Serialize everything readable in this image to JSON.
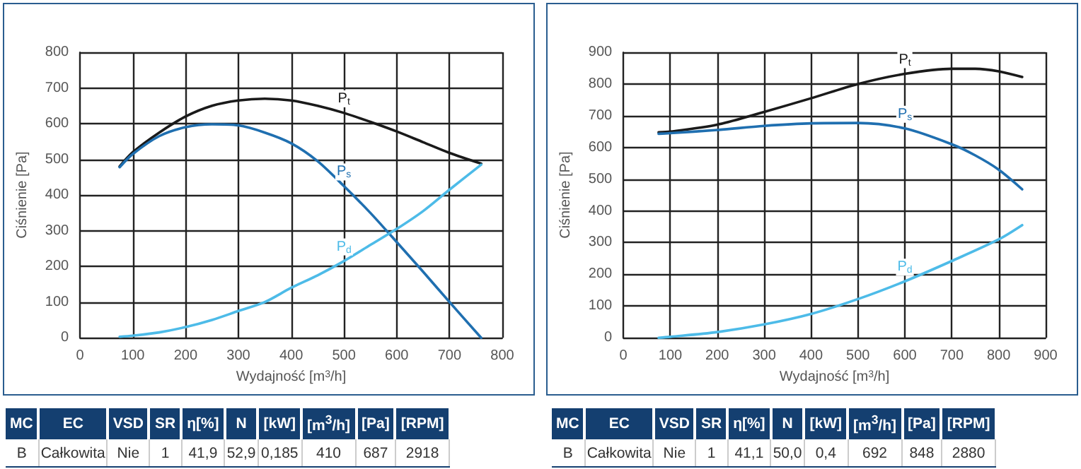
{
  "chart_data": [
    {
      "type": "line",
      "xlabel": "Wydajność [m$^{3}$/h]",
      "ylabel": "Ciśnienie [Pa]",
      "xlim": [
        0,
        800
      ],
      "xticks": [
        0,
        100,
        200,
        300,
        400,
        500,
        600,
        700,
        800
      ],
      "ylim": [
        0,
        800
      ],
      "yticks": [
        0,
        100,
        200,
        300,
        400,
        500,
        600,
        700,
        800
      ],
      "grid": true,
      "legend": false,
      "marker": "none",
      "line_style": "solid",
      "series": [
        {
          "name": "P$_{t}$",
          "color": "#1a1a1a",
          "x": [
            75,
            100,
            150,
            200,
            250,
            300,
            350,
            400,
            450,
            500,
            550,
            600,
            650,
            700,
            760
          ],
          "values": [
            480,
            520,
            575,
            620,
            650,
            665,
            670,
            665,
            650,
            630,
            605,
            578,
            548,
            518,
            488
          ]
        },
        {
          "name": "P$_{s}$",
          "color": "#1f6fb0",
          "x": [
            75,
            100,
            150,
            200,
            250,
            300,
            350,
            400,
            450,
            500,
            550,
            600,
            650,
            700,
            760
          ],
          "values": [
            478,
            515,
            565,
            590,
            598,
            595,
            575,
            545,
            495,
            425,
            350,
            268,
            185,
            100,
            0
          ]
        },
        {
          "name": "P$_{d}$",
          "color": "#4dbbe8",
          "x": [
            75,
            100,
            150,
            200,
            250,
            300,
            350,
            400,
            450,
            500,
            550,
            600,
            650,
            700,
            760
          ],
          "values": [
            3,
            6,
            15,
            30,
            50,
            75,
            100,
            140,
            175,
            215,
            260,
            305,
            355,
            415,
            485
          ]
        }
      ]
    },
    {
      "type": "line",
      "xlabel": "Wydajność [m$^{3}$/h]",
      "ylabel": "Ciśnienie [Pa]",
      "xlim": [
        0,
        900
      ],
      "xticks": [
        0,
        100,
        200,
        300,
        400,
        500,
        600,
        700,
        800,
        900
      ],
      "ylim": [
        0,
        900
      ],
      "yticks": [
        0,
        100,
        200,
        300,
        400,
        500,
        600,
        700,
        800,
        900
      ],
      "grid": true,
      "legend": false,
      "marker": "none",
      "line_style": "solid",
      "series": [
        {
          "name": "P$_{t}$",
          "color": "#1a1a1a",
          "x": [
            75,
            100,
            200,
            300,
            400,
            500,
            600,
            700,
            750,
            800,
            850
          ],
          "values": [
            648,
            650,
            672,
            712,
            755,
            800,
            832,
            848,
            848,
            840,
            822
          ]
        },
        {
          "name": "P$_{s}$",
          "color": "#1f6fb0",
          "x": [
            75,
            100,
            200,
            300,
            400,
            500,
            600,
            700,
            750,
            800,
            850
          ],
          "values": [
            643,
            645,
            655,
            668,
            676,
            677,
            660,
            610,
            575,
            530,
            468
          ]
        },
        {
          "name": "P$_{d}$",
          "color": "#4dbbe8",
          "x": [
            75,
            100,
            200,
            300,
            400,
            500,
            600,
            700,
            800,
            850
          ],
          "values": [
            0,
            3,
            18,
            42,
            75,
            122,
            178,
            242,
            310,
            355
          ]
        }
      ]
    },
    {
      "type": "other",
      "categories": [
        "MC",
        "EC",
        "VSD",
        "SR",
        "η[%]",
        "N",
        "[kW]",
        "[m$^{3}$/h]",
        "[Pa]",
        "[RPM]"
      ],
      "annotations": [
        "B",
        "Całkowita",
        "Nie",
        "1",
        "41,9",
        "52,9",
        "0,185",
        "410",
        "687",
        "2918"
      ]
    },
    {
      "type": "other",
      "categories": [
        "MC",
        "EC",
        "VSD",
        "SR",
        "η[%]",
        "N",
        "[kW]",
        "[m$^{3}$/h]",
        "[Pa]",
        "[RPM]"
      ],
      "annotations": [
        "B",
        "Całkowita",
        "Nie",
        "1",
        "41,1",
        "50,0",
        "0,4",
        "692",
        "848",
        "2880"
      ]
    }
  ]
}
